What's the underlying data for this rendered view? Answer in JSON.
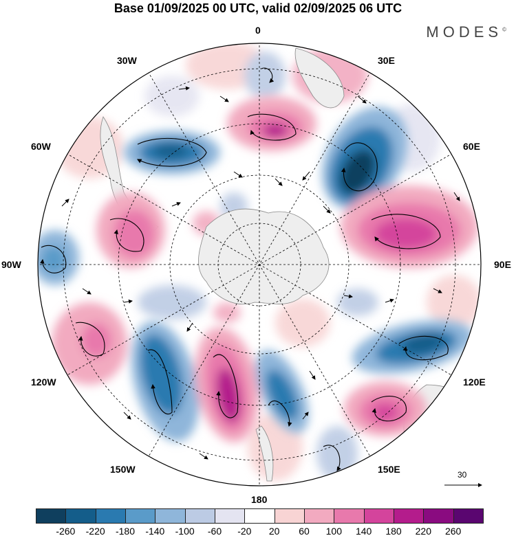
{
  "header": {
    "title": "Base 01/09/2025 00 UTC, valid 02/09/2025 06 UTC",
    "brand": "MODES"
  },
  "map": {
    "projection": "south-polar-stereographic",
    "field": "shaded anomaly with wind vectors and streamlines",
    "longitude_labels": {
      "n": "0",
      "nw": "30W",
      "ne": "30E",
      "w60": "60W",
      "e60": "60E",
      "w90": "90W",
      "e90": "90E",
      "w120": "120W",
      "e120": "120E",
      "w150": "150W",
      "e150": "150E",
      "s": "180"
    },
    "reference_vector": "30"
  },
  "colorbar": {
    "colors": [
      "#0f3f5e",
      "#145d8a",
      "#2a7ab0",
      "#5a9bc9",
      "#8fb6da",
      "#bccbe4",
      "#e4e4f1",
      "#ffffff",
      "#f8d4d4",
      "#f2aac0",
      "#e879ac",
      "#d4449c",
      "#b41c8c",
      "#8a0b80",
      "#5a0670"
    ],
    "tick_labels": [
      "-260",
      "-220",
      "-180",
      "-140",
      "-100",
      "-60",
      "-20",
      "20",
      "60",
      "100",
      "140",
      "180",
      "220",
      "260"
    ]
  }
}
